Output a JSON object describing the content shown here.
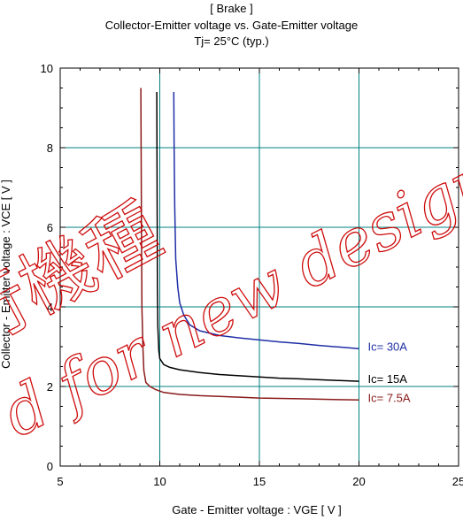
{
  "chart_data": {
    "type": "line",
    "title": "[ Brake ]",
    "subtitle": "Collector-Emitter voltage  vs. Gate-Emitter voltage",
    "condition": "Tj= 25°C  (typ.)",
    "xlabel": "Gate - Emitter voltage  :  VGE  [ V ]",
    "ylabel": "Collector - Emitter voltage  :  VCE  [ V ]",
    "xlim": [
      5,
      25
    ],
    "ylim": [
      0,
      10
    ],
    "x_ticks": [
      5,
      10,
      15,
      20,
      25
    ],
    "y_ticks": [
      0,
      2,
      4,
      6,
      8,
      10
    ],
    "grid": true,
    "series": [
      {
        "name": "Ic= 30A",
        "color": "#1f2fa6",
        "x": [
          10.7,
          10.72,
          10.75,
          10.8,
          10.9,
          11.0,
          11.2,
          11.5,
          12.0,
          13.0,
          14.0,
          15.0,
          16.0,
          17.0,
          18.0,
          19.0,
          20.0
        ],
        "y": [
          9.4,
          8.0,
          6.5,
          5.2,
          4.5,
          4.1,
          3.8,
          3.55,
          3.4,
          3.28,
          3.22,
          3.17,
          3.12,
          3.08,
          3.03,
          2.99,
          2.95
        ]
      },
      {
        "name": "Ic= 15A",
        "color": "#000000",
        "x": [
          9.85,
          9.86,
          9.87,
          9.88,
          9.9,
          9.95,
          10.0,
          10.2,
          10.5,
          11.0,
          12.0,
          13.0,
          14.0,
          15.0,
          16.0,
          17.0,
          18.0,
          19.0,
          20.0
        ],
        "y": [
          9.4,
          8.0,
          6.0,
          4.5,
          3.5,
          2.9,
          2.7,
          2.55,
          2.48,
          2.42,
          2.35,
          2.3,
          2.27,
          2.24,
          2.21,
          2.19,
          2.17,
          2.15,
          2.13
        ]
      },
      {
        "name": "Ic= 7.5A",
        "color": "#8b1a1a",
        "x": [
          9.05,
          9.06,
          9.08,
          9.1,
          9.15,
          9.2,
          9.3,
          9.5,
          9.8,
          10.2,
          11.0,
          12.0,
          13.0,
          14.0,
          15.0,
          16.0,
          17.0,
          18.0,
          19.0,
          20.0
        ],
        "y": [
          9.5,
          8.0,
          6.0,
          4.0,
          3.0,
          2.4,
          2.1,
          2.0,
          1.92,
          1.85,
          1.8,
          1.77,
          1.75,
          1.73,
          1.71,
          1.7,
          1.69,
          1.68,
          1.67,
          1.66
        ]
      }
    ]
  },
  "watermark": {
    "line1": "行機種",
    "line2": "d for new design."
  }
}
